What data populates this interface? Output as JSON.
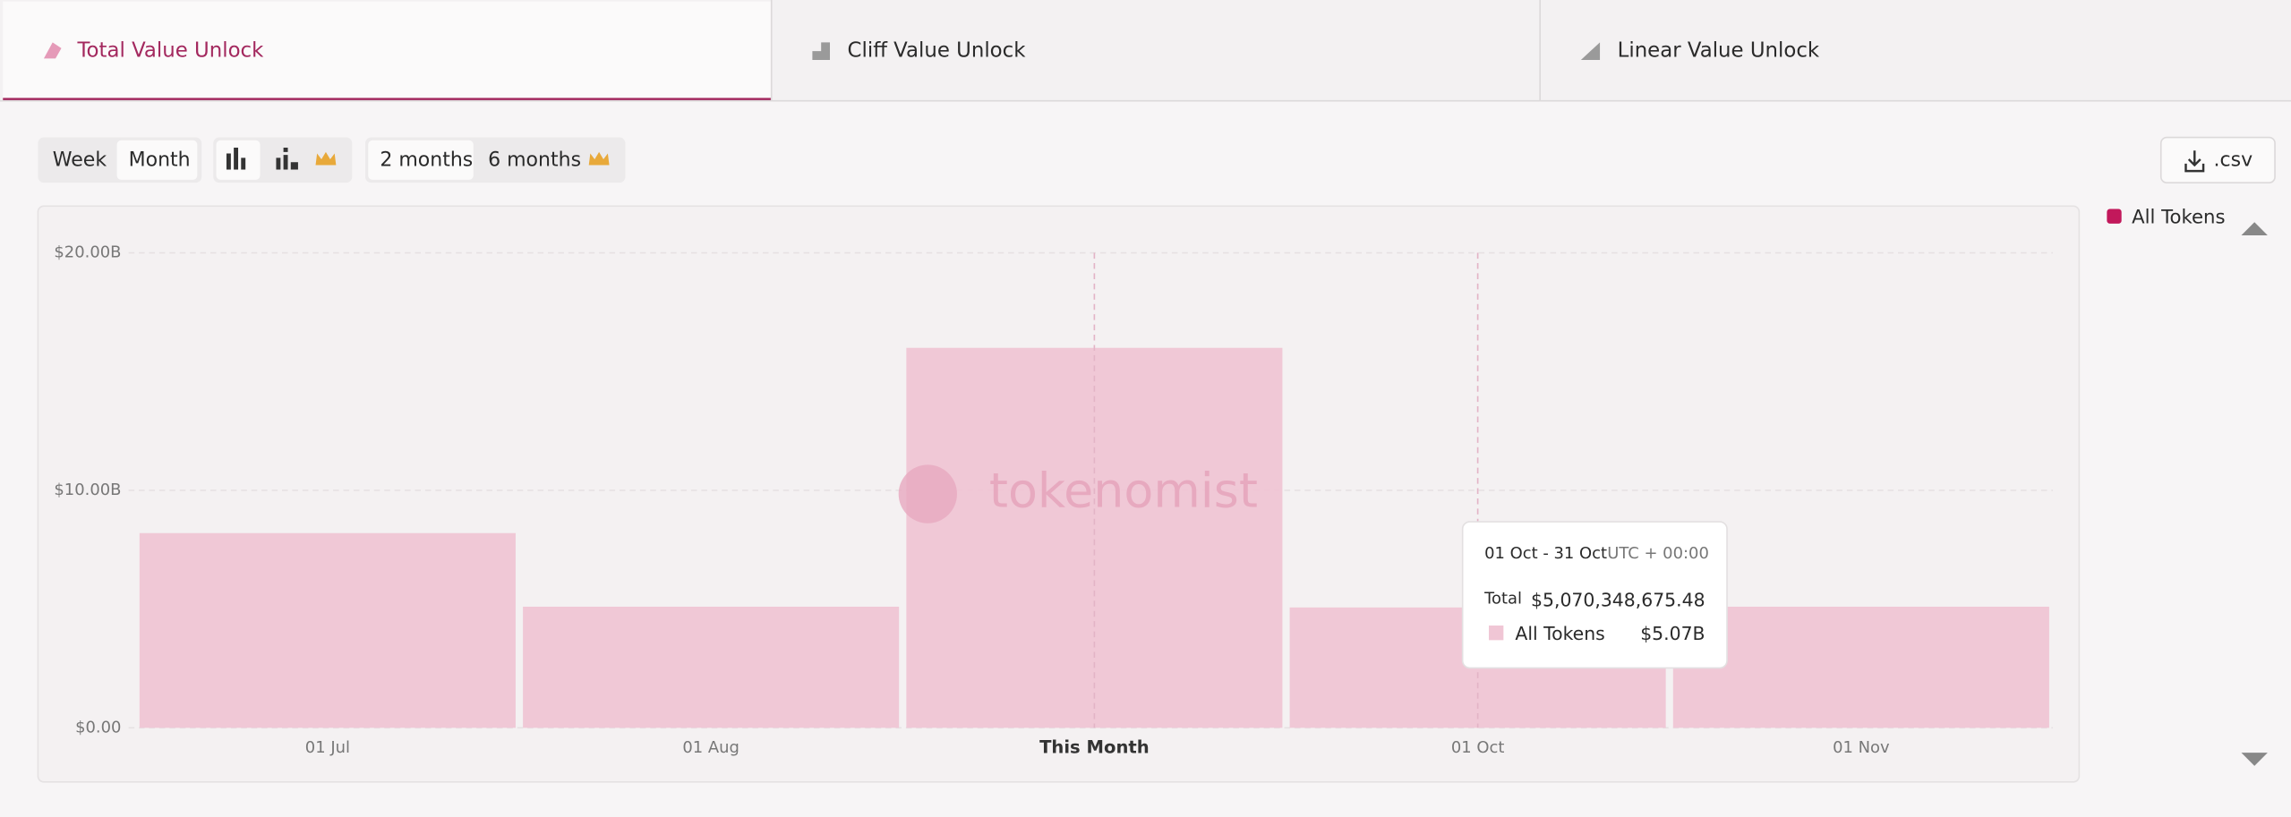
{
  "tabs": [
    "Total Value Unlock",
    "Cliff Value Unlock",
    "Linear Value Unlock"
  ],
  "controls": {
    "periods": [
      "Week",
      "Month"
    ],
    "ranges": [
      "2 months",
      "6 months"
    ],
    "download": ".csv"
  },
  "watermark": "tokenomist",
  "tooltip": {
    "range": "01 Oct - 31 Oct",
    "timezone": "UTC + 00:00",
    "total_label": "Total",
    "total": "$5,070,348,675.48",
    "value": "$5.07B"
  },
  "chart_data": {
    "type": "bar",
    "categories": [
      "01 Jul",
      "01 Aug",
      "This Month",
      "01 Oct",
      "01 Nov"
    ],
    "series": [
      {
        "name": "All Tokens",
        "color": "#c2185b",
        "values": [
          8.2,
          5.1,
          16.0,
          5.07,
          5.1
        ]
      }
    ],
    "ylim": [
      0,
      20
    ],
    "yticks": [
      {
        "value": 0,
        "label": "$0.00"
      },
      {
        "value": 10,
        "label": "$10.00B"
      },
      {
        "value": 20,
        "label": "$20.00B"
      }
    ],
    "grid": true
  }
}
